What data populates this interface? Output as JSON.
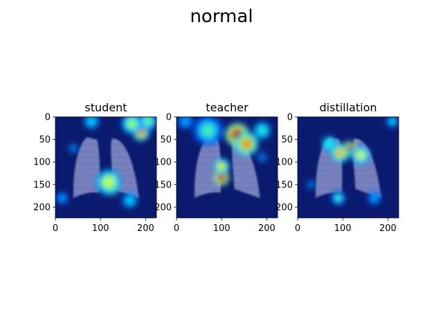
{
  "figure": {
    "title": "normal"
  },
  "chart_data": [
    {
      "type": "heatmap",
      "title": "student",
      "xlabel": "",
      "ylabel": "",
      "xticks": [
        0,
        100,
        200
      ],
      "yticks": [
        0,
        50,
        100,
        150,
        200
      ],
      "xlim": [
        0,
        224
      ],
      "ylim": [
        224,
        0
      ],
      "colormap": "jet",
      "background": "#0a1a6e",
      "hotspots": [
        {
          "x": 125,
          "y": 155,
          "intensity": 1.0,
          "radius": 14
        },
        {
          "x": 118,
          "y": 145,
          "intensity": 0.6,
          "radius": 22
        },
        {
          "x": 190,
          "y": 35,
          "intensity": 0.75,
          "radius": 14
        },
        {
          "x": 170,
          "y": 15,
          "intensity": 0.55,
          "radius": 18
        },
        {
          "x": 205,
          "y": 10,
          "intensity": 0.5,
          "radius": 16
        },
        {
          "x": 80,
          "y": 10,
          "intensity": 0.35,
          "radius": 18
        },
        {
          "x": 15,
          "y": 180,
          "intensity": 0.3,
          "radius": 14
        },
        {
          "x": 165,
          "y": 185,
          "intensity": 0.35,
          "radius": 18
        },
        {
          "x": 40,
          "y": 70,
          "intensity": 0.25,
          "radius": 18
        }
      ]
    },
    {
      "type": "heatmap",
      "title": "teacher",
      "xlabel": "",
      "ylabel": "",
      "xticks": [
        0,
        100,
        200
      ],
      "yticks": [
        0,
        50,
        100,
        150,
        200
      ],
      "xlim": [
        0,
        224
      ],
      "ylim": [
        224,
        0
      ],
      "colormap": "jet",
      "background": "#0a1a6e",
      "hotspots": [
        {
          "x": 135,
          "y": 40,
          "intensity": 1.0,
          "radius": 20
        },
        {
          "x": 155,
          "y": 60,
          "intensity": 0.75,
          "radius": 20
        },
        {
          "x": 100,
          "y": 135,
          "intensity": 1.0,
          "radius": 13
        },
        {
          "x": 100,
          "y": 110,
          "intensity": 0.65,
          "radius": 14
        },
        {
          "x": 70,
          "y": 30,
          "intensity": 0.45,
          "radius": 25
        },
        {
          "x": 190,
          "y": 30,
          "intensity": 0.4,
          "radius": 20
        },
        {
          "x": 20,
          "y": 10,
          "intensity": 0.3,
          "radius": 18
        },
        {
          "x": 190,
          "y": 90,
          "intensity": 0.25,
          "radius": 18
        }
      ]
    },
    {
      "type": "heatmap",
      "title": "distillation",
      "xlabel": "",
      "ylabel": "",
      "xticks": [
        0,
        100,
        200
      ],
      "yticks": [
        0,
        50,
        100,
        150,
        200
      ],
      "xlim": [
        0,
        224
      ],
      "ylim": [
        224,
        0
      ],
      "colormap": "jet",
      "background": "#0a1a6e",
      "hotspots": [
        {
          "x": 115,
          "y": 70,
          "intensity": 1.0,
          "radius": 12
        },
        {
          "x": 95,
          "y": 80,
          "intensity": 0.7,
          "radius": 16
        },
        {
          "x": 140,
          "y": 85,
          "intensity": 0.6,
          "radius": 16
        },
        {
          "x": 70,
          "y": 60,
          "intensity": 0.4,
          "radius": 18
        },
        {
          "x": 90,
          "y": 180,
          "intensity": 0.45,
          "radius": 12
        },
        {
          "x": 210,
          "y": 10,
          "intensity": 0.35,
          "radius": 14
        },
        {
          "x": 30,
          "y": 150,
          "intensity": 0.25,
          "radius": 16
        },
        {
          "x": 170,
          "y": 180,
          "intensity": 0.3,
          "radius": 16
        }
      ]
    }
  ]
}
